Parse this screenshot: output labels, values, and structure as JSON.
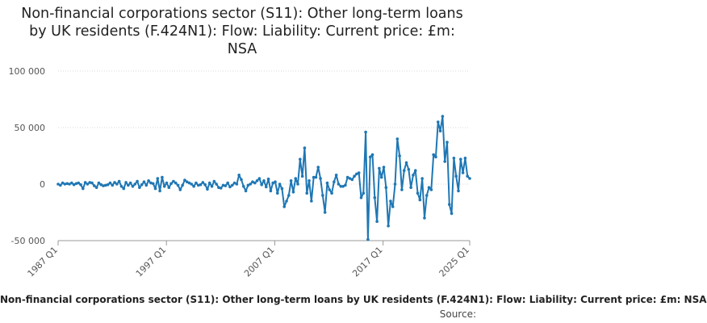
{
  "chart_data": {
    "type": "line",
    "title": "Non-financial corporations sector (S11): Other long-term loans by UK residents (F.424N1): Flow: Liability: Current price: £m: NSA",
    "xlabel": "",
    "ylabel": "",
    "ylim": [
      -50000,
      100000
    ],
    "y_ticks": [
      100000,
      50000,
      0,
      -50000
    ],
    "y_tick_labels": [
      "100 000",
      "50 000",
      "0",
      "-50 000"
    ],
    "x_tick_labels": [
      "1987 Q1",
      "1997 Q1",
      "2007 Q1",
      "2017 Q1",
      "2025 Q1"
    ],
    "x_start": "1987 Q1",
    "x_end": "2025 Q1",
    "grid": true,
    "legend": "bottom",
    "series": [
      {
        "name": "Non-financial corporations sector (S11): Other long-term loans by UK residents (F.424N1): Flow: Liability: Current price: £m: NSA",
        "color": "#1f77b4",
        "values": [
          0,
          -1000,
          1000,
          0,
          500,
          0,
          1000,
          -500,
          500,
          1000,
          -500,
          -4000,
          1500,
          0,
          1500,
          1000,
          -1500,
          -3000,
          1000,
          -500,
          -1500,
          -1000,
          -500,
          1000,
          -1000,
          1500,
          0,
          2500,
          -2000,
          -4000,
          1500,
          -1000,
          1000,
          -2000,
          0,
          2500,
          -3000,
          -500,
          2000,
          -1000,
          3000,
          1000,
          500,
          -4000,
          5000,
          -6000,
          6000,
          -2000,
          1000,
          -3000,
          500,
          2500,
          1000,
          -1000,
          -5000,
          -1000,
          3500,
          2000,
          1000,
          0,
          -2000,
          1000,
          -1000,
          -500,
          1500,
          -500,
          -4500,
          1000,
          -2000,
          2500,
          0,
          -3000,
          -3500,
          -1000,
          -1500,
          1000,
          -2500,
          -1000,
          1000,
          0,
          8000,
          4000,
          -2000,
          -6000,
          -1000,
          0,
          2000,
          1000,
          3000,
          5000,
          -500,
          3000,
          -2500,
          4500,
          -6000,
          1000,
          2000,
          -8000,
          0,
          -4000,
          -20000,
          -15000,
          -10000,
          3000,
          -7000,
          5000,
          0,
          22000,
          7000,
          32000,
          -8000,
          3000,
          -15000,
          6000,
          6000,
          15000,
          5000,
          -10000,
          -25000,
          1000,
          -5000,
          -8000,
          2000,
          8000,
          0,
          -2000,
          -2000,
          -1000,
          6000,
          5000,
          4000,
          7000,
          9000,
          10000,
          -12000,
          -8000,
          46000,
          -49000,
          24000,
          26000,
          -12000,
          -33000,
          14000,
          6000,
          15000,
          -3000,
          -37000,
          -15000,
          -20000,
          0,
          40000,
          25000,
          -5000,
          12000,
          19000,
          13000,
          -3000,
          8000,
          12000,
          -8000,
          -14000,
          5000,
          -30000,
          -10000,
          -3000,
          -5000,
          26000,
          24000,
          55000,
          47000,
          60000,
          20000,
          37000,
          -18000,
          -26000,
          23000,
          7000,
          -6000,
          22000,
          10000,
          23000,
          7000,
          5000
        ]
      }
    ]
  },
  "legend_text": "Non-financial corporations sector (S11): Other long-term loans by UK residents (F.424N1): Flow: Liability: Current price: £m: NSA",
  "source_label": "Source:"
}
